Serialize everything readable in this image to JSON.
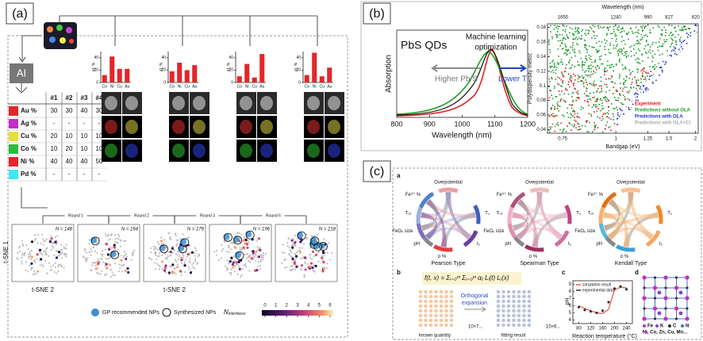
{
  "panel_a": {
    "label": "(a)",
    "ai": "AI",
    "table": {
      "columns": [
        "#1",
        "#2",
        "#3",
        "#4"
      ],
      "rows": [
        {
          "name": "Au %",
          "color": "#e3262a",
          "cells": [
            30,
            30,
            40,
            30
          ]
        },
        {
          "name": "Ag %",
          "color": "#c42fc4",
          "cells": [
            "-",
            "-",
            "-",
            "-"
          ]
        },
        {
          "name": "Cu %",
          "color": "#e8e03a",
          "cells": [
            20,
            10,
            10,
            10
          ]
        },
        {
          "name": "Co %",
          "color": "#2dbb3a",
          "cells": [
            10,
            20,
            10,
            10
          ]
        },
        {
          "name": "Ni %",
          "color": "#e3262a",
          "cells": [
            40,
            40,
            40,
            50
          ]
        },
        {
          "name": "Pd %",
          "color": "#3ee8f0",
          "cells": [
            "-",
            "-",
            "-",
            "-"
          ]
        }
      ]
    },
    "bar_charts": {
      "type": "bar",
      "ylabel": "at. %",
      "categories": [
        "Co",
        "Ni",
        "Cu",
        "Au"
      ],
      "color": "#e3262a",
      "ylim": [
        0,
        50
      ],
      "yticks": [
        0,
        20,
        40
      ],
      "values": [
        [
          12,
          42,
          22,
          22
        ],
        [
          18,
          32,
          20,
          28
        ],
        [
          10,
          30,
          8,
          46
        ],
        [
          12,
          48,
          10,
          24
        ]
      ]
    },
    "tsne": {
      "rounds": [
        "Round 1",
        "Round 2",
        "Round 3",
        "Round 6"
      ],
      "counts": [
        "N = 148",
        "N = 164",
        "N = 179",
        "N = 196",
        "N = 218"
      ],
      "xlabel": "t-SNE 2",
      "ylabel": "t-SNE 1"
    },
    "legend": {
      "gp": "GP recommended NPs",
      "synth": "Synthesized NPs",
      "colorbar_label": {
        "main": "N",
        "sub": "interfaces"
      },
      "colorbar_ticks": [
        0,
        1,
        2,
        3,
        4,
        5,
        6
      ]
    }
  },
  "panel_b": {
    "label": "(b)",
    "absorption": {
      "title": "PbS QDs",
      "annotation": [
        "Machine learning",
        "optimization"
      ],
      "left_arrow": "Higher Pb/S",
      "right_arrow": "Lower T",
      "xlabel": "Wavelength (nm)",
      "ylabel": "Absorption",
      "xlim": [
        800,
        1200
      ],
      "xticks": [
        800,
        900,
        1000,
        1100,
        1200
      ]
    },
    "scatter": {
      "xlabel": "Bandgap (eV)",
      "x2label": "Wavelength (nm)",
      "ylabel": "Polydispersity metric",
      "xlim": [
        0.7,
        2.07
      ],
      "xticks": [
        0.75,
        1,
        1.25,
        1.5,
        2
      ],
      "x2lim": [
        1770,
        600
      ],
      "x2ticks": [
        1650,
        1240,
        990,
        827,
        620
      ],
      "ylim": [
        0.035,
        0.185
      ],
      "yticks": [
        0.04,
        0.06,
        0.08,
        0.1,
        0.12,
        0.14,
        0.16,
        0.18
      ],
      "legend": [
        {
          "name": "Experiment",
          "color": "#e8141c"
        },
        {
          "name": "Predictions without OLA",
          "color": "#1e9b2c"
        },
        {
          "name": "Predictions with OLA",
          "color": "#2032d8"
        },
        {
          "name": "Predictions with OLA+Cl",
          "color": "#aaaaaa"
        }
      ]
    }
  },
  "panel_c": {
    "label": "(c)",
    "a": "a",
    "chord": {
      "types": [
        "Pearson Type",
        "Spearman Type",
        "Kendall Type"
      ],
      "variables": [
        "Overpotential",
        "T₂",
        "t₂",
        "σ %",
        "pH",
        "FeOₓ size",
        "Tₚₜ",
        "Fe³⁺ %"
      ]
    },
    "b": "b",
    "formula": "f(t, x) = Σᵢ₌₀ᵐ Σⱼ₌₀ᵐ αᵢⱼ Lᵢ(t) Lⱼ(x)",
    "expansion": [
      "Orthogonal",
      "expansion"
    ],
    "known": "known quantity",
    "fitting": "fitting result",
    "dim1": "10×7...",
    "dim2": "10×6...",
    "c_plot": {
      "type": "line",
      "label": "c",
      "xlabel": "Reaction temperature (°C)",
      "ylabel": "pH",
      "x": [
        80,
        100,
        120,
        140,
        160,
        180,
        200,
        220,
        240
      ],
      "xlim": [
        60,
        260
      ],
      "xticks": [
        80,
        120,
        160,
        200,
        240
      ],
      "ylim": [
        3.5,
        9.5
      ],
      "yticks": [
        4,
        5,
        6,
        7,
        8,
        9
      ],
      "series": [
        {
          "name": "simulation result",
          "color": "#e0584a",
          "values": [
            6.0,
            5.6,
            5.3,
            5.0,
            4.9,
            5.5,
            8.2,
            8.6,
            8.5
          ]
        },
        {
          "name": "experimental data",
          "color": "#333333",
          "values": [
            5.8,
            5.4,
            5.2,
            5.0,
            5.3,
            6.5,
            8.4,
            8.7,
            8.3
          ]
        }
      ]
    },
    "d": {
      "label": "d",
      "legend": [
        "Fe",
        "K",
        "C",
        "N"
      ],
      "metals": "Ni, Co, Zn, Cu, Mn..."
    }
  }
}
